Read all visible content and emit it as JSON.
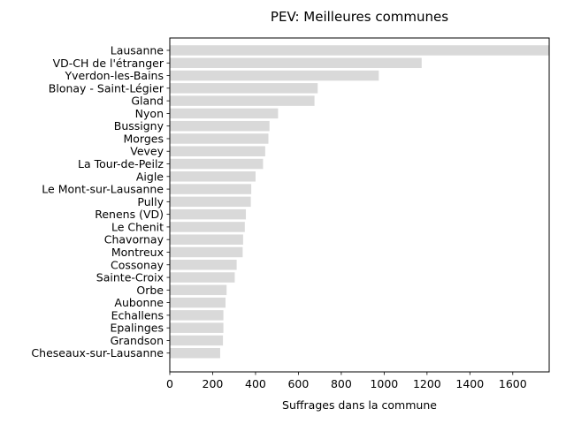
{
  "chart_data": {
    "type": "bar",
    "orientation": "horizontal",
    "title": "PEV: Meilleures communes",
    "xlabel": "Suffrages dans la commune",
    "ylabel": "",
    "xlim": [
      0,
      1770
    ],
    "xticks": [
      0,
      200,
      400,
      600,
      800,
      1000,
      1200,
      1400,
      1600
    ],
    "bar_color": "#d9d9d9",
    "grid": false,
    "categories": [
      "Lausanne",
      "VD-CH de l'étranger",
      "Yverdon-les-Bains",
      "Blonay - Saint-Légier",
      "Gland",
      "Nyon",
      "Bussigny",
      "Morges",
      "Vevey",
      "La Tour-de-Peilz",
      "Aigle",
      "Le Mont-sur-Lausanne",
      "Pully",
      "Renens (VD)",
      "Le Chenit",
      "Chavornay",
      "Montreux",
      "Cossonay",
      "Sainte-Croix",
      "Orbe",
      "Aubonne",
      "Echallens",
      "Epalinges",
      "Grandson",
      "Cheseaux-sur-Lausanne"
    ],
    "values": [
      1770,
      1175,
      975,
      690,
      675,
      505,
      465,
      460,
      445,
      435,
      400,
      380,
      378,
      355,
      350,
      342,
      340,
      312,
      303,
      265,
      260,
      250,
      250,
      248,
      235
    ]
  }
}
